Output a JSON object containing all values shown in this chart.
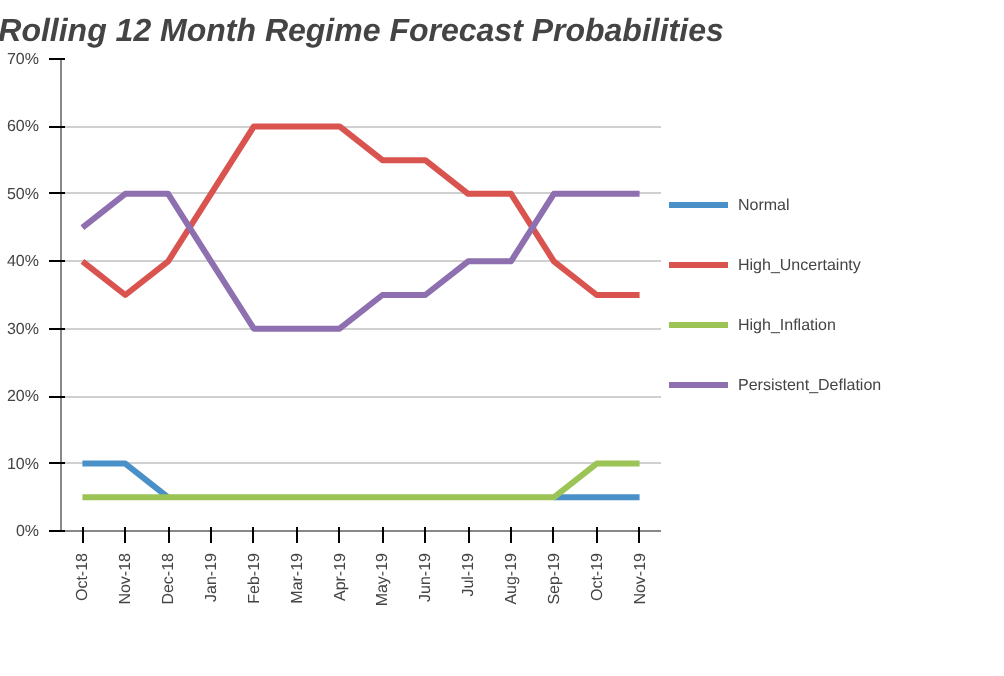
{
  "chart_data": {
    "type": "line",
    "title": "Rolling 12 Month Regime Forecast Probabilities",
    "categories": [
      "Oct-18",
      "Nov-18",
      "Dec-18",
      "Jan-19",
      "Feb-19",
      "Mar-19",
      "Apr-19",
      "May-19",
      "Jun-19",
      "Jul-19",
      "Aug-19",
      "Sep-19",
      "Oct-19",
      "Nov-19"
    ],
    "series": [
      {
        "name": "Normal",
        "color": "#4a90c8",
        "values": [
          10,
          10,
          5,
          null,
          null,
          null,
          null,
          null,
          null,
          null,
          null,
          5,
          5,
          5
        ]
      },
      {
        "name": "High_Uncertainty",
        "color": "#d9534f",
        "values": [
          40,
          35,
          40,
          50,
          60,
          60,
          60,
          55,
          55,
          50,
          50,
          40,
          35,
          35
        ]
      },
      {
        "name": "High_Inflation",
        "color": "#9bc356",
        "values": [
          5,
          5,
          5,
          5,
          5,
          5,
          5,
          5,
          5,
          5,
          5,
          5,
          10,
          10
        ]
      },
      {
        "name": "Persistent_Deflation",
        "color": "#8e6fb0",
        "values": [
          45,
          50,
          50,
          40,
          30,
          30,
          30,
          35,
          35,
          40,
          40,
          50,
          50,
          50
        ]
      }
    ],
    "ylim": [
      0,
      70
    ],
    "yticks": [
      {
        "value": 0,
        "label": "0%"
      },
      {
        "value": 10,
        "label": "10%"
      },
      {
        "value": 20,
        "label": "20%"
      },
      {
        "value": 30,
        "label": "30%"
      },
      {
        "value": 40,
        "label": "40%"
      },
      {
        "value": 50,
        "label": "50%"
      },
      {
        "value": 60,
        "label": "60%"
      },
      {
        "value": 70,
        "label": "70%"
      }
    ],
    "grid": "y",
    "legend": "right",
    "marker": "none",
    "line_style": "solid"
  }
}
